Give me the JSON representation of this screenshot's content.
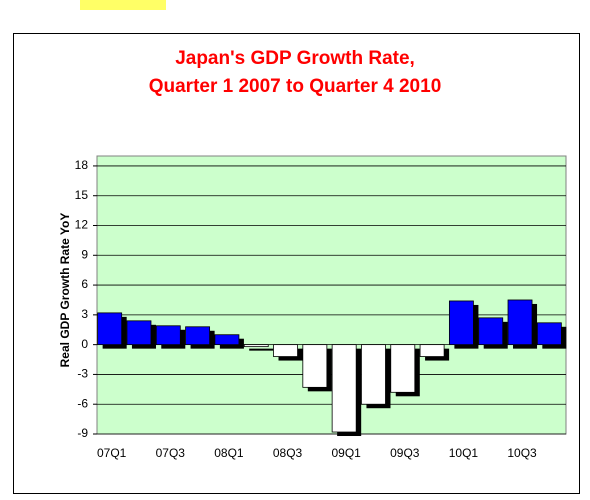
{
  "chart_data": {
    "type": "bar",
    "title": [
      "Japan's GDP Growth Rate,",
      "Quarter 1 2007 to Quarter 4 2010"
    ],
    "y_label": "Real GDP Growth Rate YoY",
    "categories": [
      "07Q1",
      null,
      "07Q3",
      null,
      "08Q1",
      null,
      "08Q3",
      null,
      "09Q1",
      null,
      "09Q3",
      null,
      "10Q1",
      null,
      "10Q3",
      null
    ],
    "values": [
      3.2,
      2.4,
      1.9,
      1.8,
      1.0,
      -0.2,
      -1.2,
      -4.3,
      -8.8,
      -6.0,
      -4.8,
      -1.2,
      4.4,
      2.7,
      4.5,
      2.2
    ],
    "positive_color": "#0000ff",
    "negative_color": "#ffffff",
    "shadow_color": "#000000",
    "plot_background": "#ccffcc",
    "ylim": [
      -9,
      19
    ],
    "yticks": [
      -9,
      -6,
      -3,
      0,
      3,
      6,
      9,
      12,
      15,
      18
    ],
    "grid": true
  }
}
